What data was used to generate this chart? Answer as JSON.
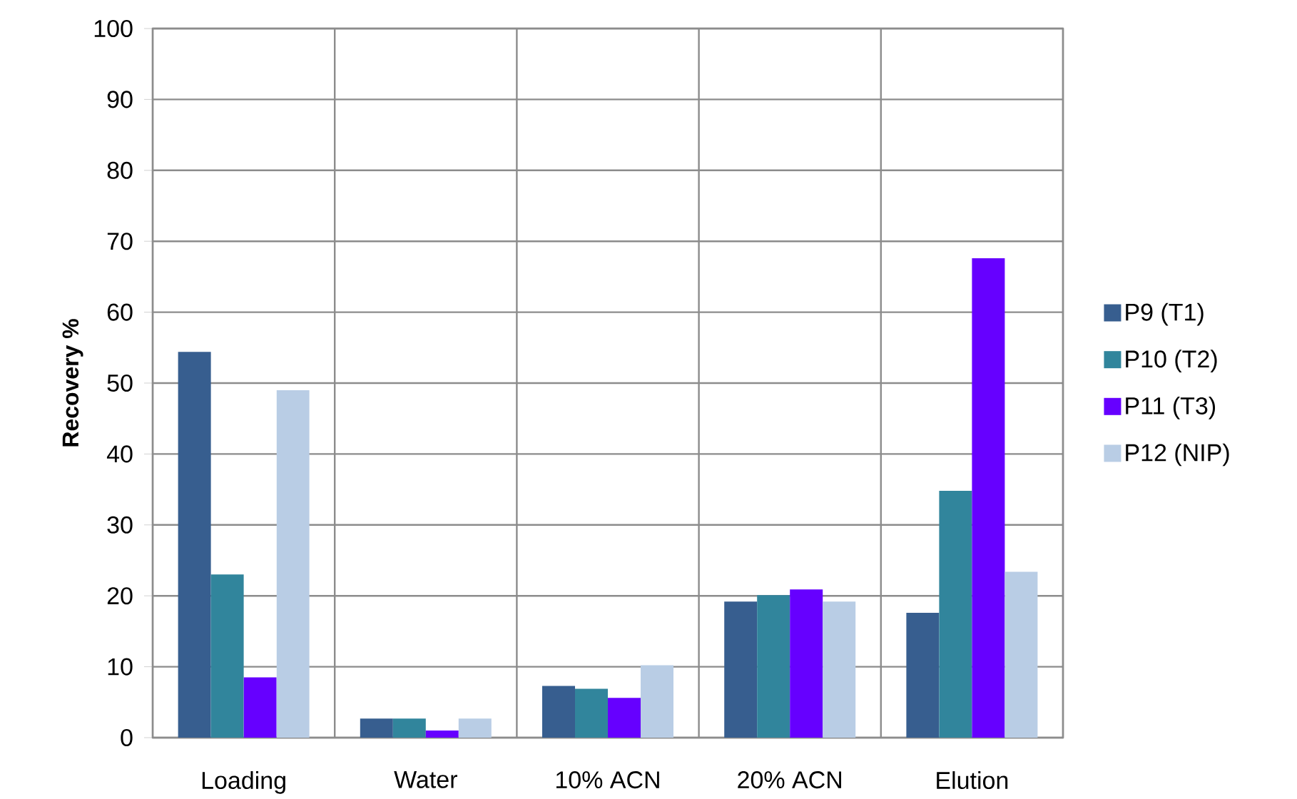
{
  "chart_data": {
    "type": "bar",
    "ylabel": "Recovery %",
    "categories": [
      "Loading",
      "Water",
      "10% ACN",
      "20% ACN",
      "Elution"
    ],
    "series": [
      {
        "name": "P9 (T1)",
        "color": "#375e8f",
        "values": [
          54.4,
          2.7,
          7.3,
          19.2,
          17.6
        ]
      },
      {
        "name": "P10 (T2)",
        "color": "#31859c",
        "values": [
          23,
          2.7,
          6.9,
          20.1,
          34.8
        ]
      },
      {
        "name": "P11 (T3)",
        "color": "#6600ff",
        "values": [
          8.5,
          1,
          5.6,
          20.9,
          67.6
        ]
      },
      {
        "name": "P12 (NIP)",
        "color": "#b9cde5",
        "values": [
          49,
          2.7,
          10.2,
          19.2,
          23.4
        ]
      }
    ],
    "ylim": [
      0,
      100
    ],
    "yticks": [
      0,
      10,
      20,
      30,
      40,
      50,
      60,
      70,
      80,
      90,
      100
    ],
    "grid": true,
    "legend": "right"
  }
}
